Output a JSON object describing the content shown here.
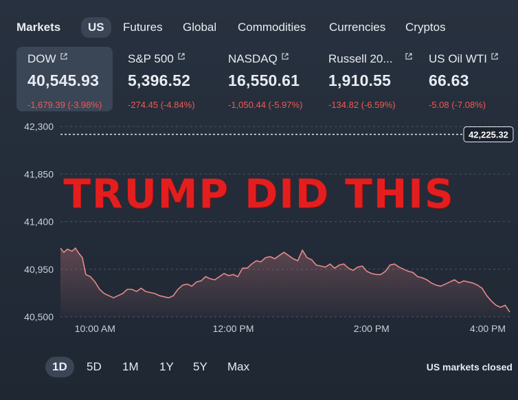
{
  "nav": {
    "brand": "Markets",
    "items": [
      "US",
      "Futures",
      "Global",
      "Commodities",
      "Currencies",
      "Cryptos"
    ]
  },
  "tiles": [
    {
      "name": "DOW",
      "value": "40,545.93",
      "change": "-1,679.39 (-3.98%)"
    },
    {
      "name": "S&P 500",
      "value": "5,396.52",
      "change": "-274.45 (-4.84%)"
    },
    {
      "name": "NASDAQ",
      "value": "16,550.61",
      "change": "-1,050.44 (-5.97%)"
    },
    {
      "name": "Russell 20...",
      "value": "1,910.55",
      "change": "-134.82 (-6.59%)"
    },
    {
      "name": "US Oil WTI",
      "value": "66.63",
      "change": "-5.08 (-7.08%)"
    }
  ],
  "overlay_text": "TRUMP DID THIS",
  "colors": {
    "negative": "#ee5a52",
    "line": "#e88a8a",
    "active_bg": "#3a4556"
  },
  "chart_data": {
    "type": "area",
    "ylim": [
      40500,
      42300
    ],
    "yticks": [
      "42,300",
      "41,850",
      "41,400",
      "40,950",
      "40,500"
    ],
    "xticks": [
      "10:00 AM",
      "12:00 PM",
      "2:00 PM",
      "4:00 PM"
    ],
    "previous_close": "42,225.32",
    "previous_close_value": 42225.32,
    "x_start_minutes": 570,
    "x_end_minutes": 960,
    "points": [
      [
        570,
        41150
      ],
      [
        573,
        41110
      ],
      [
        576,
        41140
      ],
      [
        580,
        41120
      ],
      [
        583,
        41150
      ],
      [
        586,
        41100
      ],
      [
        589,
        41060
      ],
      [
        592,
        40900
      ],
      [
        596,
        40880
      ],
      [
        600,
        40830
      ],
      [
        604,
        40760
      ],
      [
        608,
        40720
      ],
      [
        612,
        40700
      ],
      [
        616,
        40680
      ],
      [
        620,
        40700
      ],
      [
        624,
        40720
      ],
      [
        628,
        40760
      ],
      [
        632,
        40760
      ],
      [
        636,
        40740
      ],
      [
        640,
        40770
      ],
      [
        644,
        40740
      ],
      [
        648,
        40730
      ],
      [
        652,
        40720
      ],
      [
        656,
        40700
      ],
      [
        660,
        40690
      ],
      [
        664,
        40680
      ],
      [
        668,
        40700
      ],
      [
        672,
        40760
      ],
      [
        676,
        40800
      ],
      [
        680,
        40810
      ],
      [
        684,
        40790
      ],
      [
        688,
        40830
      ],
      [
        692,
        40840
      ],
      [
        696,
        40880
      ],
      [
        700,
        40860
      ],
      [
        704,
        40850
      ],
      [
        708,
        40880
      ],
      [
        712,
        40910
      ],
      [
        716,
        40890
      ],
      [
        720,
        40900
      ],
      [
        724,
        40880
      ],
      [
        728,
        40960
      ],
      [
        732,
        40960
      ],
      [
        736,
        41000
      ],
      [
        740,
        41030
      ],
      [
        744,
        41020
      ],
      [
        748,
        41060
      ],
      [
        752,
        41070
      ],
      [
        756,
        41050
      ],
      [
        760,
        41080
      ],
      [
        764,
        41110
      ],
      [
        768,
        41080
      ],
      [
        772,
        41050
      ],
      [
        776,
        41030
      ],
      [
        780,
        41130
      ],
      [
        784,
        41060
      ],
      [
        788,
        41040
      ],
      [
        792,
        40990
      ],
      [
        796,
        40980
      ],
      [
        800,
        40970
      ],
      [
        804,
        41000
      ],
      [
        808,
        40960
      ],
      [
        812,
        40990
      ],
      [
        816,
        41000
      ],
      [
        820,
        40960
      ],
      [
        824,
        40940
      ],
      [
        828,
        40970
      ],
      [
        832,
        40980
      ],
      [
        836,
        40930
      ],
      [
        840,
        40910
      ],
      [
        844,
        40900
      ],
      [
        848,
        40900
      ],
      [
        852,
        40930
      ],
      [
        856,
        40990
      ],
      [
        860,
        41000
      ],
      [
        864,
        40970
      ],
      [
        868,
        40950
      ],
      [
        872,
        40930
      ],
      [
        876,
        40920
      ],
      [
        880,
        40880
      ],
      [
        884,
        40870
      ],
      [
        888,
        40850
      ],
      [
        892,
        40820
      ],
      [
        896,
        40800
      ],
      [
        900,
        40790
      ],
      [
        904,
        40810
      ],
      [
        908,
        40830
      ],
      [
        912,
        40850
      ],
      [
        916,
        40820
      ],
      [
        920,
        40840
      ],
      [
        924,
        40830
      ],
      [
        928,
        40820
      ],
      [
        932,
        40800
      ],
      [
        936,
        40770
      ],
      [
        940,
        40700
      ],
      [
        944,
        40650
      ],
      [
        948,
        40610
      ],
      [
        952,
        40590
      ],
      [
        956,
        40610
      ],
      [
        960,
        40545
      ]
    ]
  },
  "ranges": [
    "1D",
    "5D",
    "1M",
    "1Y",
    "5Y",
    "Max"
  ],
  "active_range": "1D",
  "status": "US markets closed"
}
